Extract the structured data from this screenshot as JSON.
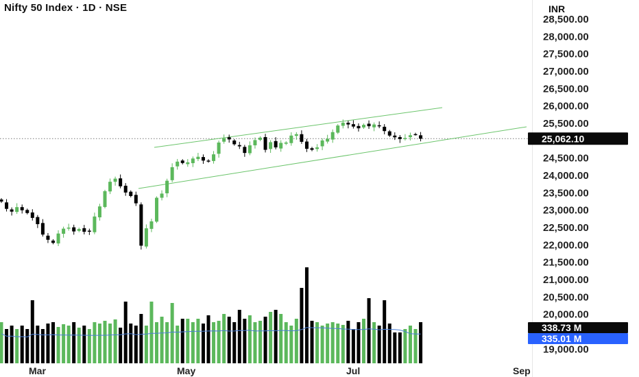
{
  "header": {
    "title": "Nifty 50 Index · 1D · NSE",
    "currency": "INR"
  },
  "colors": {
    "up": "#5cb85c",
    "down": "#000000",
    "channel": "#6ac46a",
    "volume_ma": "#4a7fd6",
    "badge_dark": "#0a0a0a",
    "badge_blue": "#2962ff"
  },
  "price_axis": {
    "ticks": [
      "28,500.00",
      "28,000.00",
      "27,500.00",
      "27,000.00",
      "26,500.00",
      "26,000.00",
      "25,500.00",
      "24,500.00",
      "24,000.00",
      "23,500.00",
      "23,000.00",
      "22,500.00",
      "22,000.00",
      "21,500.00",
      "21,000.00",
      "20,500.00",
      "20,000.00",
      "19,000.00"
    ]
  },
  "time_axis": {
    "labels": [
      "Mar",
      "May",
      "Jul",
      "Sep"
    ]
  },
  "badges": {
    "last_price": "25,062.10",
    "volume": "338.73 M",
    "volume_ma": "335.01 M"
  },
  "chart_data": {
    "type": "candlestick",
    "title": "Nifty 50 Index · 1D · NSE",
    "symbol": "Nifty 50 Index",
    "interval": "1D",
    "exchange": "NSE",
    "currency": "INR",
    "y_range": [
      18850,
      28600
    ],
    "last_price": 25062.1,
    "volume": "338.73 M",
    "volume_ma": "335.01 M",
    "closes": [
      23250,
      23040,
      22960,
      23090,
      23000,
      22920,
      22780,
      22600,
      22300,
      22150,
      22060,
      22330,
      22470,
      22500,
      22390,
      22460,
      22380,
      22400,
      22820,
      23110,
      23550,
      23820,
      23910,
      23690,
      23510,
      23410,
      23200,
      21980,
      22480,
      22680,
      23360,
      23480,
      23850,
      24240,
      24400,
      24360,
      24380,
      24490,
      24540,
      24430,
      24410,
      24610,
      24950,
      25070,
      25040,
      24900,
      24840,
      24650,
      24870,
      25020,
      25090,
      24740,
      24960,
      24810,
      24940,
      24950,
      25150,
      25190,
      24970,
      24770,
      24740,
      24810,
      25010,
      25060,
      25250,
      25440,
      25520,
      25470,
      25410,
      25360,
      25460,
      25420,
      25470,
      25420,
      25280,
      25150,
      25100,
      25050,
      25080,
      25160,
      25190,
      25060
    ],
    "volumes": [
      60,
      50,
      55,
      50,
      55,
      50,
      92,
      55,
      50,
      58,
      60,
      53,
      57,
      55,
      60,
      52,
      55,
      50,
      60,
      58,
      62,
      58,
      64,
      52,
      90,
      58,
      55,
      72,
      55,
      90,
      60,
      68,
      60,
      88,
      55,
      65,
      65,
      60,
      65,
      58,
      70,
      60,
      62,
      72,
      68,
      60,
      78,
      65,
      70,
      60,
      62,
      68,
      75,
      78,
      72,
      60,
      55,
      65,
      110,
      140,
      62,
      60,
      55,
      58,
      60,
      58,
      56,
      62,
      50,
      60,
      65,
      95,
      60,
      55,
      92,
      58,
      45,
      45,
      50,
      55,
      50,
      60
    ]
  }
}
